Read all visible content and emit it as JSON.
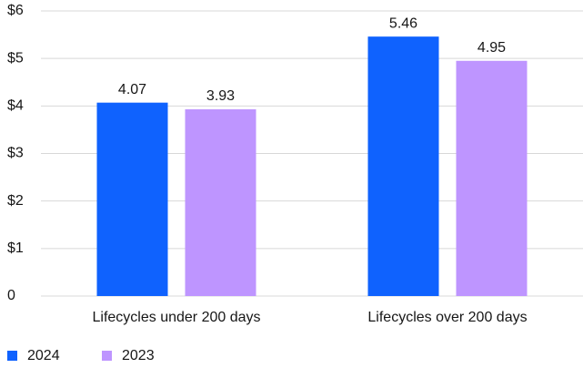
{
  "chart_data": {
    "type": "bar",
    "categories": [
      "Lifecycles under 200 days",
      "Lifecycles over 200 days"
    ],
    "series": [
      {
        "name": "2024",
        "color": "#0f62fe",
        "values": [
          4.07,
          5.46
        ]
      },
      {
        "name": "2023",
        "color": "#be95ff",
        "values": [
          3.93,
          4.95
        ]
      }
    ],
    "ylim": [
      0,
      6
    ],
    "yticks": [
      0,
      {
        "value": 1,
        "label": "$1"
      },
      {
        "value": 2,
        "label": "$2"
      },
      {
        "value": 3,
        "label": "$3"
      },
      {
        "value": 4,
        "label": "$4"
      },
      {
        "value": 5,
        "label": "$5"
      },
      {
        "value": 6,
        "label": "$6"
      }
    ],
    "grid": true,
    "legend": "bottom-left"
  }
}
